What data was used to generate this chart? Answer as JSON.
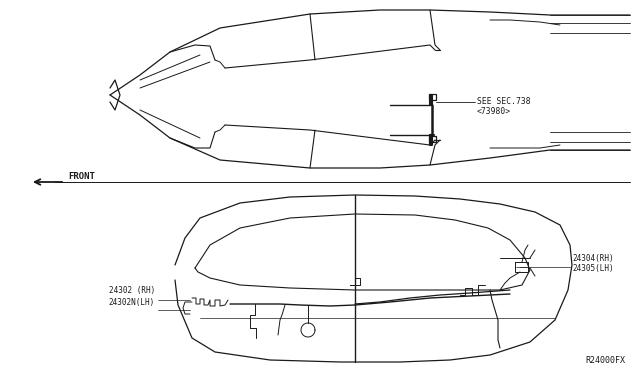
{
  "bg_color": "#ffffff",
  "line_color": "#1a1a1a",
  "fig_width": 6.4,
  "fig_height": 3.72,
  "dpi": 100,
  "annotations": {
    "see_sec_line1": "SEE SEC.738",
    "see_sec_line2": "<73980>",
    "front_label": "FRONT",
    "part1": "24302 (RH)",
    "part2": "24302N(LH)",
    "part3": "24304(RH)",
    "part4": "24305(LH)",
    "diagram_id": "R24000FX"
  }
}
